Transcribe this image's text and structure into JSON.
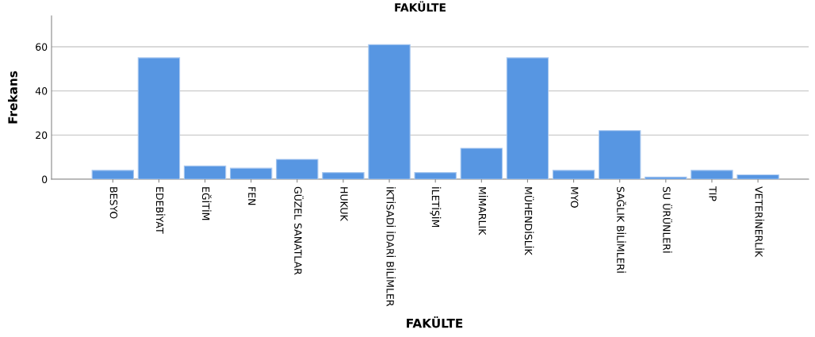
{
  "chart_data": {
    "type": "bar",
    "title": "FAKÜLTE",
    "xlabel": "FAKÜLTE",
    "ylabel": "Frekans",
    "categories": [
      "BESYO",
      "EDEBİYAT",
      "EĞİTİM",
      "FEN",
      "GÜZEL SANATLAR",
      "HUKUK",
      "İKTİSADİ İDARİ BİLİMLER",
      "İLETİŞİM",
      "MİMARLIK",
      "MÜHENDİSLİK",
      "MYO",
      "SAĞLIK BİLİMLERİ",
      "SU ÜRÜNLERİ",
      "TIP",
      "VETERİNERLİK"
    ],
    "values": [
      4,
      55,
      6,
      5,
      9,
      3,
      61,
      3,
      14,
      55,
      4,
      22,
      1,
      4,
      2
    ],
    "color": "#5796e2",
    "ylim": [
      0,
      74
    ],
    "yticks": [
      0,
      20,
      40,
      60
    ],
    "grid": "y"
  }
}
